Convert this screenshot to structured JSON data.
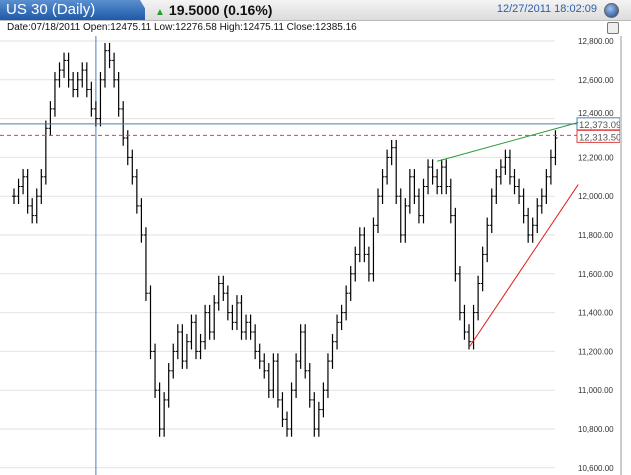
{
  "header": {
    "title": "US 30 (Daily)",
    "change": "19.5000 (0.16%)",
    "change_icon": "up-triangle-icon",
    "datetime": "12/27/2011 18:02:09"
  },
  "info": {
    "text": "Date:07/18/2011 Open:12475.11 Low:12276.58 High:12475.11 Close:12385.16"
  },
  "chart_data": {
    "type": "ohlc",
    "ylim": [
      10600,
      12800
    ],
    "yticks": [
      "12,800.00",
      "12,600.00",
      "12,400.00",
      "12,200.00",
      "12,000.00",
      "11,800.00",
      "11,600.00",
      "11,400.00",
      "11,200.00",
      "11,000.00",
      "10,800.00",
      "10,600.00"
    ],
    "ytick_values": [
      12800,
      12600,
      12400,
      12200,
      12000,
      11800,
      11600,
      11400,
      11200,
      11000,
      10800,
      10600
    ],
    "closes": [
      12000,
      12050,
      12100,
      11950,
      11900,
      12000,
      12100,
      12350,
      12450,
      12600,
      12650,
      12700,
      12600,
      12550,
      12600,
      12650,
      12550,
      12450,
      12400,
      12600,
      12750,
      12700,
      12600,
      12450,
      12300,
      12200,
      12100,
      11950,
      11800,
      11500,
      11200,
      11000,
      10800,
      10950,
      11100,
      11200,
      11300,
      11150,
      11250,
      11350,
      11200,
      11250,
      11400,
      11300,
      11450,
      11550,
      11500,
      11400,
      11350,
      11450,
      11300,
      11350,
      11300,
      11200,
      11150,
      11100,
      11000,
      11150,
      10950,
      10850,
      10800,
      11000,
      11150,
      11300,
      11100,
      10950,
      10800,
      10900,
      11000,
      11150,
      11250,
      11350,
      11400,
      11500,
      11600,
      11700,
      11800,
      11700,
      11600,
      11850,
      12000,
      12100,
      12200,
      12250,
      12000,
      11800,
      11950,
      12100,
      12000,
      11900,
      12050,
      12150,
      12100,
      12050,
      12150,
      12050,
      11900,
      11600,
      11400,
      11300,
      11250,
      11400,
      11550,
      11700,
      11850,
      12000,
      12100,
      12150,
      12200,
      12100,
      12050,
      12000,
      11900,
      11800,
      11850,
      11950,
      12000,
      12100,
      12200,
      12300
    ],
    "levels": [
      {
        "label": "12,373.09",
        "value": 12373.09,
        "color": "#4a7fb0"
      },
      {
        "label": "12,313.50",
        "value": 12313.5,
        "color": "#e04040"
      }
    ],
    "crosshair_bar": 18,
    "trendlines": [
      {
        "color": "#2a9a3a",
        "from": [
          93,
          12180
        ],
        "to": [
          124,
          12380
        ]
      },
      {
        "color": "#e02020",
        "from": [
          100,
          11220
        ],
        "to": [
          124,
          12060
        ]
      }
    ],
    "grid": true,
    "bar_color": "#000000"
  }
}
